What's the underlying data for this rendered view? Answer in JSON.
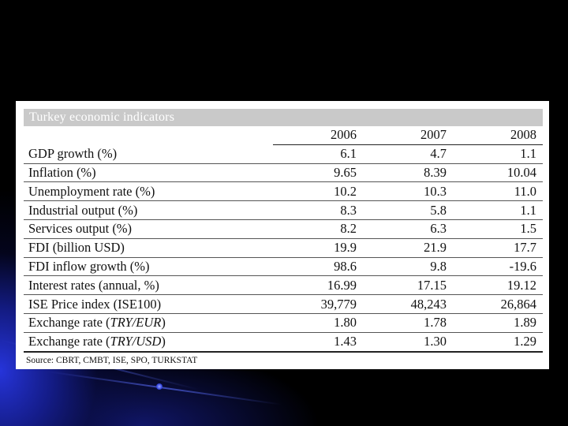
{
  "title": "Turkey economic indicators",
  "columns": [
    "2006",
    "2007",
    "2008"
  ],
  "rows": [
    {
      "label": "GDP growth (%)",
      "values": [
        "6.1",
        "4.7",
        "1.1"
      ]
    },
    {
      "label": "Inflation (%)",
      "values": [
        "9.65",
        "8.39",
        "10.04"
      ]
    },
    {
      "label": "Unemployment rate (%)",
      "values": [
        "10.2",
        "10.3",
        "11.0"
      ]
    },
    {
      "label": "Industrial output (%)",
      "values": [
        "8.3",
        "5.8",
        "1.1"
      ]
    },
    {
      "label": "Services output (%)",
      "values": [
        "8.2",
        "6.3",
        "1.5"
      ]
    },
    {
      "label": "FDI (billion USD)",
      "values": [
        "19.9",
        "21.9",
        "17.7"
      ]
    },
    {
      "label": "FDI inflow growth (%)",
      "values": [
        "98.6",
        "9.8",
        "-19.6"
      ]
    },
    {
      "label": "Interest rates (annual, %)",
      "values": [
        "16.99",
        "17.15",
        "19.12"
      ]
    },
    {
      "label": "ISE Price index (ISE100)",
      "values": [
        "39,779",
        "48,243",
        "26,864"
      ]
    },
    {
      "label": "Exchange rate (TRY/EUR)",
      "label_plain": "Exchange rate (",
      "label_italic": "TRY/EUR",
      "label_end": ")",
      "values": [
        "1.80",
        "1.78",
        "1.89"
      ]
    },
    {
      "label": "Exchange rate (TRY/USD)",
      "label_plain": "Exchange rate (",
      "label_italic": "TRY/USD",
      "label_end": ")",
      "values": [
        "1.43",
        "1.30",
        "1.29"
      ]
    }
  ],
  "source": "Source: CBRT, CMBT, ISE, SPO, TURKSTAT"
}
